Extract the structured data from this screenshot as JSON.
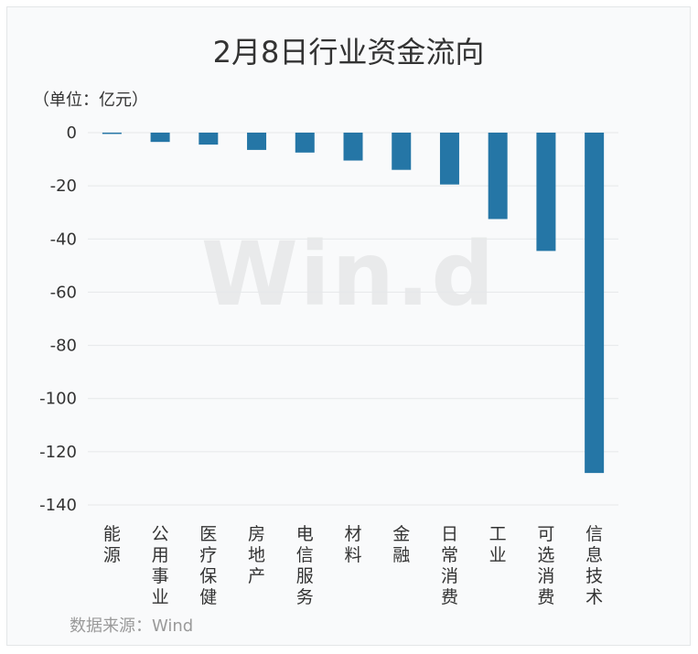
{
  "chart_data": {
    "type": "bar",
    "title": "2月8日行业资金流向",
    "unit_label": "（单位：亿元）",
    "source": "数据来源：Wind",
    "watermark": "Win.d",
    "categories": [
      "能源",
      "公用事业",
      "医疗保健",
      "房地产",
      "电信服务",
      "材料",
      "金融",
      "日常消费",
      "工业",
      "可选消费",
      "信息技术"
    ],
    "values": [
      -0.5,
      -3.5,
      -4.5,
      -6.5,
      -7.5,
      -10.5,
      -14,
      -19.5,
      -32.5,
      -44.5,
      -128
    ],
    "y_ticks": [
      0,
      -20,
      -40,
      -60,
      -80,
      -100,
      -120,
      -140
    ],
    "ylim": [
      -140,
      0
    ],
    "grid": true,
    "colors": {
      "bar": "#2576a6",
      "grid": "#e6e8ea"
    }
  }
}
